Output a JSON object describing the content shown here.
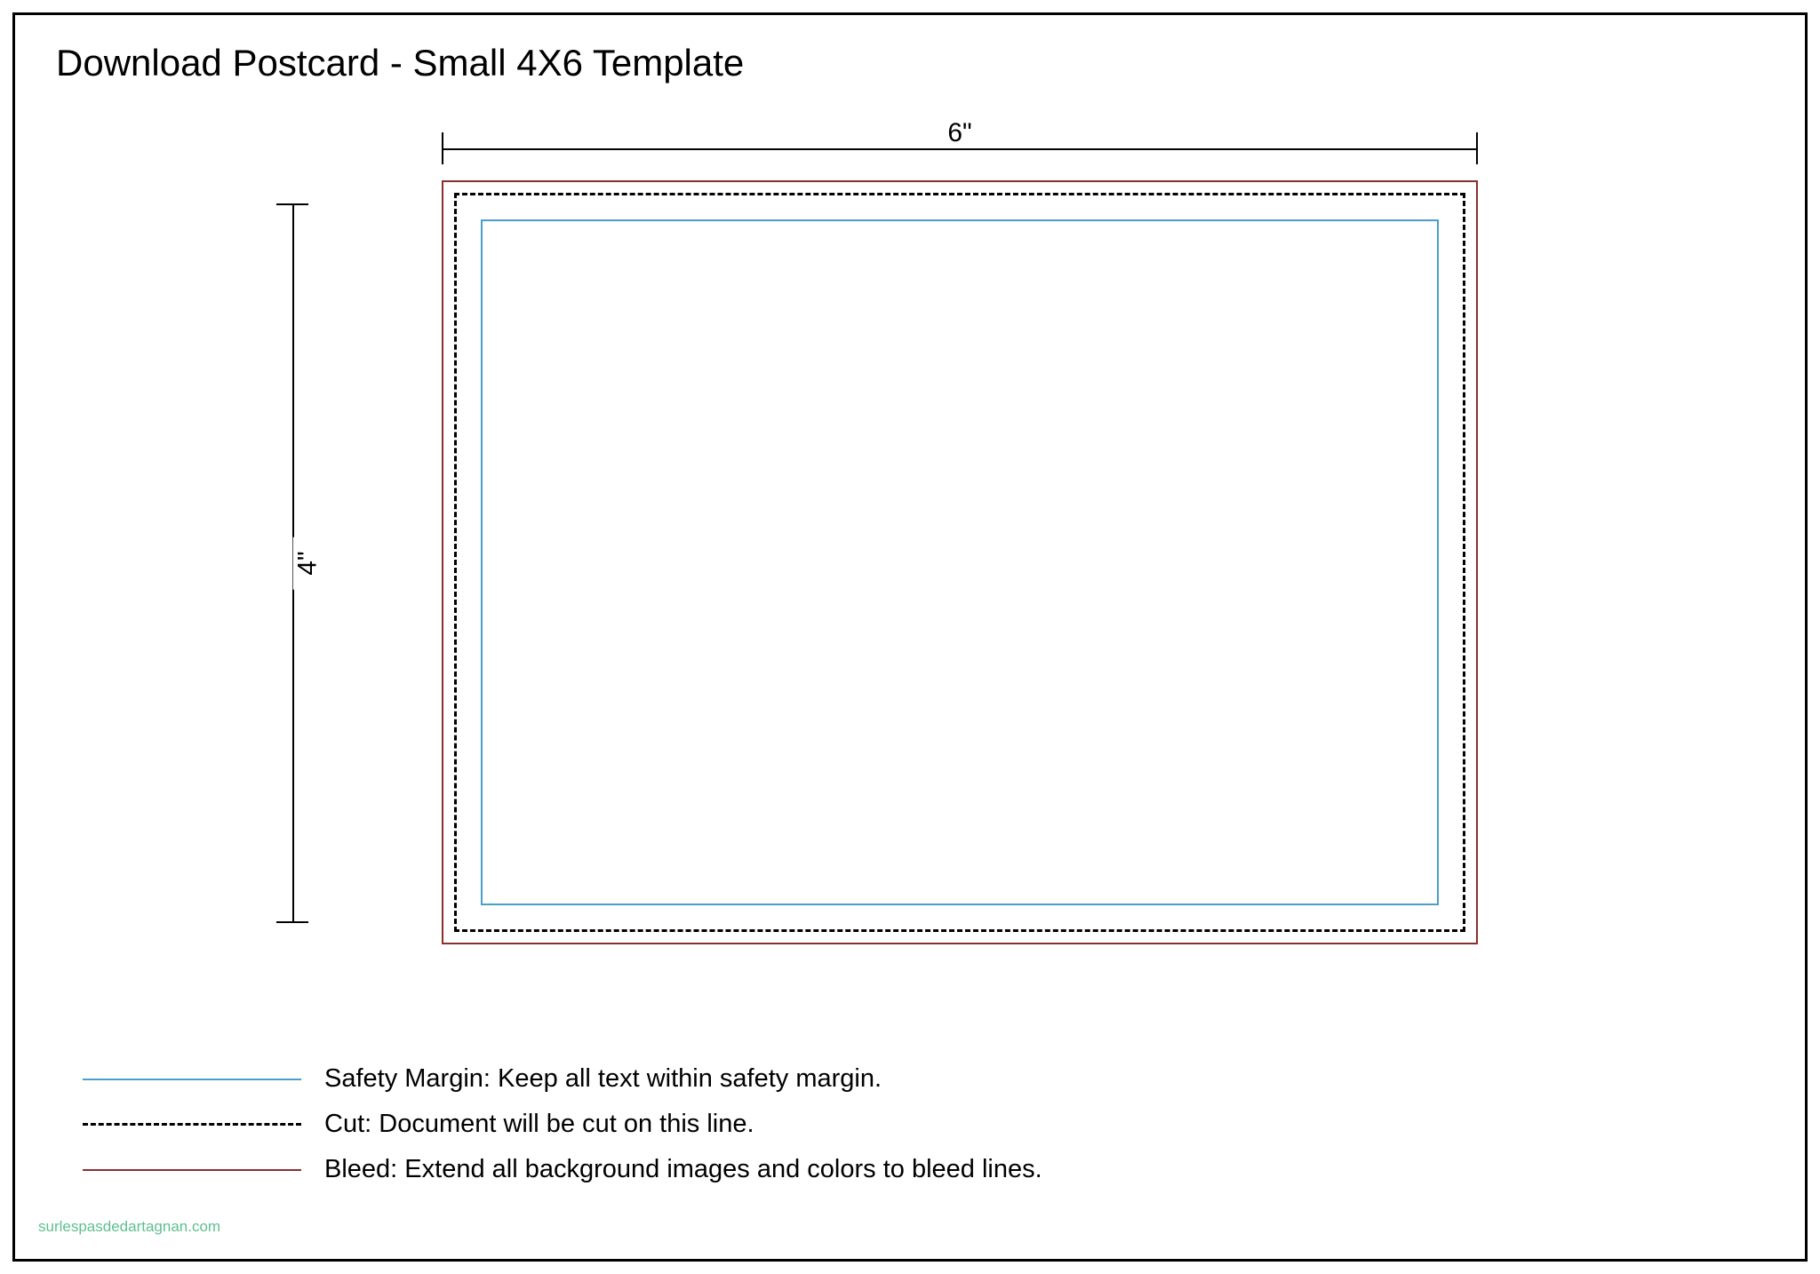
{
  "title": "Download Postcard - Small 4X6 Template",
  "dimensions": {
    "width_label": "6\"",
    "height_label": "4\""
  },
  "colors": {
    "bleed": "#8b2e2e",
    "cut": "#000000",
    "safety": "#4a9ec7",
    "background": "#ffffff",
    "text": "#000000",
    "watermark": "#5fbf8f"
  },
  "legend": {
    "safety": {
      "label": "Safety Margin:",
      "description": "Keep all text within safety margin."
    },
    "cut": {
      "label": "Cut:",
      "description": "Document will be cut on this line."
    },
    "bleed": {
      "label": "Bleed:",
      "description": "Extend all background images and colors to bleed lines."
    }
  },
  "watermark": "surlespasdedartagnan.com",
  "styling": {
    "title_fontsize": 42,
    "dim_label_fontsize": 30,
    "legend_fontsize": 29,
    "watermark_fontsize": 17,
    "bleed_border_width": 2,
    "cut_border_width": 3,
    "safety_border_width": 2,
    "cut_dash": "dashed"
  }
}
